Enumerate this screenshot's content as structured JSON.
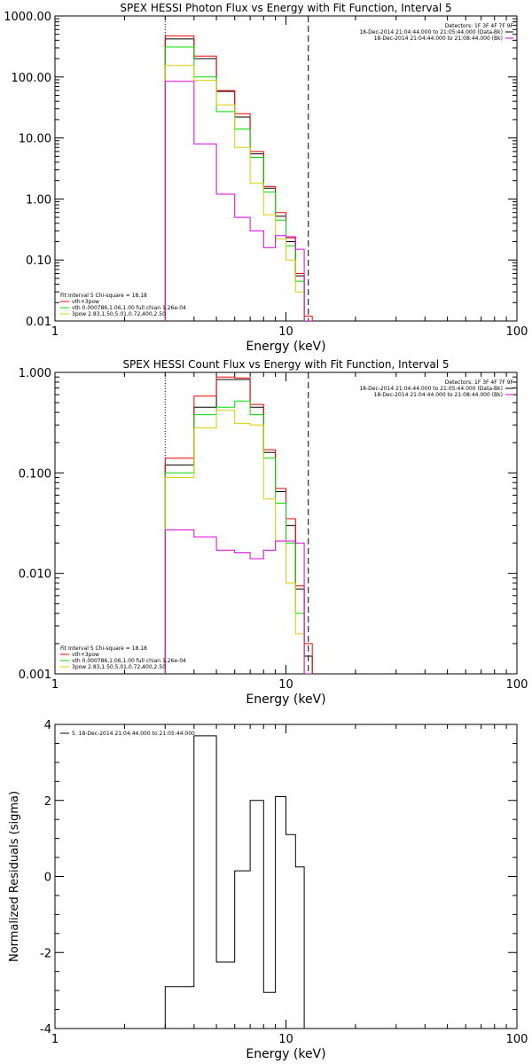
{
  "chart_data": [
    {
      "type": "line",
      "title": "SPEX HESSI Photon Flux vs Energy with Fit Function, Interval 5",
      "xlabel": "Energy (keV)",
      "ylabel": "",
      "xscale": "log",
      "yscale": "log",
      "xlim": [
        1,
        100
      ],
      "ylim": [
        0.01,
        1000
      ],
      "xticks": [
        {
          "v": 1,
          "label": "1"
        },
        {
          "v": 10,
          "label": "10"
        },
        {
          "v": 100,
          "label": "100"
        }
      ],
      "yticks": [
        {
          "v": 0.01,
          "label": "0.01"
        },
        {
          "v": 0.1,
          "label": "0.10"
        },
        {
          "v": 1,
          "label": "1.00"
        },
        {
          "v": 10,
          "label": "10.00"
        },
        {
          "v": 100,
          "label": "100.00"
        },
        {
          "v": 1000,
          "label": "1000.00"
        }
      ],
      "vlines": [
        {
          "x": 3.0,
          "style": "dotted"
        },
        {
          "x": 12.5,
          "style": "dashed"
        }
      ],
      "edges": [
        3.0,
        4.0,
        5.0,
        6.0,
        7.0,
        8.0,
        9.0,
        10.0,
        11.0,
        12.0,
        13.0
      ],
      "series": [
        {
          "color": "#000000",
          "values": [
            420,
            200,
            58,
            22,
            5.5,
            1.5,
            0.52,
            0.2,
            0.055,
            0.01
          ]
        },
        {
          "color": "#ff0000",
          "values": [
            470,
            220,
            60,
            25,
            6.0,
            1.6,
            0.6,
            0.23,
            0.06,
            0.012
          ]
        },
        {
          "color": "#00dd00",
          "values": [
            310,
            100,
            27,
            14,
            4.8,
            1.3,
            0.45,
            0.17,
            0.045,
            0.008
          ]
        },
        {
          "color": "#ddcc00",
          "values": [
            155,
            88,
            35,
            7.0,
            1.8,
            0.55,
            0.22,
            0.1,
            0.03,
            0.006
          ]
        },
        {
          "color": "#dd00dd",
          "values": [
            85,
            8.0,
            1.2,
            0.5,
            0.3,
            0.16,
            0.25,
            0.24,
            0.15,
            0.005
          ]
        }
      ],
      "legend_right": {
        "header": "Detectors: 1F 3F 4F 7F 9F",
        "entries": [
          {
            "text": "18-Dec-2014 21:04:44.000 to 21:05:44.000 (Data-Bk)",
            "color": "#000000"
          },
          {
            "text": "18-Dec-2014 21:04:44.000 to 21:08:44.000 (Bk)",
            "color": "#dd00dd"
          }
        ]
      },
      "legend_left": {
        "header": "Fit Interval 5   Chi-square = 18.18",
        "entries": [
          {
            "text": "vth+3pow",
            "color": "#ff0000"
          },
          {
            "text": "vth 0.000786,1.06,1.00  full chian 1.26e-04",
            "color": "#00dd00"
          },
          {
            "text": "3pow 2.83,1.50,5.01,0.72,400,2.50",
            "color": "#ddcc00"
          }
        ]
      }
    },
    {
      "type": "line",
      "title": "SPEX HESSI Count Flux vs Energy with Fit Function, Interval 5",
      "xlabel": "Energy (keV)",
      "ylabel": "",
      "xscale": "log",
      "yscale": "log",
      "xlim": [
        1,
        100
      ],
      "ylim": [
        0.001,
        1
      ],
      "xticks": [
        {
          "v": 1,
          "label": "1"
        },
        {
          "v": 10,
          "label": "10"
        },
        {
          "v": 100,
          "label": "100"
        }
      ],
      "yticks": [
        {
          "v": 0.001,
          "label": "0.001"
        },
        {
          "v": 0.01,
          "label": "0.010"
        },
        {
          "v": 0.1,
          "label": "0.100"
        },
        {
          "v": 1,
          "label": "1.000"
        }
      ],
      "vlines": [
        {
          "x": 3.0,
          "style": "dotted"
        },
        {
          "x": 12.5,
          "style": "dashed"
        }
      ],
      "edges": [
        3.0,
        4.0,
        5.0,
        6.0,
        7.0,
        8.0,
        9.0,
        10.0,
        11.0,
        12.0,
        13.0
      ],
      "series": [
        {
          "color": "#000000",
          "values": [
            0.12,
            0.45,
            0.85,
            0.85,
            0.45,
            0.16,
            0.065,
            0.03,
            0.007,
            0.0015
          ]
        },
        {
          "color": "#ff0000",
          "values": [
            0.14,
            0.58,
            0.9,
            0.88,
            0.48,
            0.17,
            0.07,
            0.035,
            0.0075,
            0.002
          ]
        },
        {
          "color": "#00dd00",
          "values": [
            0.1,
            0.38,
            0.45,
            0.52,
            0.38,
            0.14,
            0.05,
            0.02,
            0.004,
            0.001
          ]
        },
        {
          "color": "#ddcc00",
          "values": [
            0.09,
            0.28,
            0.42,
            0.31,
            0.3,
            0.055,
            0.021,
            0.008,
            0.0025,
            0.001
          ]
        },
        {
          "color": "#dd00dd",
          "values": [
            0.027,
            0.023,
            0.017,
            0.016,
            0.014,
            0.017,
            0.021,
            0.021,
            0.02,
            0.001
          ]
        }
      ],
      "legend_right": {
        "header": "Detectors: 1F 3F 4F 7F 9F",
        "entries": [
          {
            "text": "18-Dec-2014 21:04:44.000 to 21:05:44.000 (Data-Bk)",
            "color": "#000000"
          },
          {
            "text": "18-Dec-2014 21:04:44.000 to 21:08:44.000 (Bk)",
            "color": "#dd00dd"
          }
        ]
      },
      "legend_left": {
        "header": "Fit Interval 5   Chi-square = 18.18",
        "entries": [
          {
            "text": "vth+3pow",
            "color": "#ff0000"
          },
          {
            "text": "vth 0.000786,1.06,1.00  full chian 1.26e-04",
            "color": "#00dd00"
          },
          {
            "text": "3pow 2.83,1.50,5.01,0.72,400,2.50",
            "color": "#ddcc00"
          }
        ]
      }
    },
    {
      "type": "line",
      "title": "",
      "xlabel": "Energy (keV)",
      "ylabel": "Normalized Residuals (sigma)",
      "xscale": "log",
      "yscale": "linear",
      "xlim": [
        1,
        100
      ],
      "ylim": [
        -4,
        4
      ],
      "xticks": [
        {
          "v": 1,
          "label": "1"
        },
        {
          "v": 10,
          "label": "10"
        },
        {
          "v": 100,
          "label": "100"
        }
      ],
      "yticks": [
        {
          "v": -4,
          "label": "-4"
        },
        {
          "v": -2,
          "label": "-2"
        },
        {
          "v": 0,
          "label": "0"
        },
        {
          "v": 2,
          "label": "2"
        },
        {
          "v": 4,
          "label": "4"
        }
      ],
      "vlines": [],
      "edges": [
        3.0,
        4.0,
        5.0,
        6.0,
        7.0,
        8.0,
        9.0,
        10.0,
        11.0,
        12.0
      ],
      "series": [
        {
          "color": "#000000",
          "values": [
            -2.9,
            3.7,
            -2.25,
            0.15,
            2.0,
            -3.05,
            2.1,
            1.1,
            0.25
          ]
        }
      ],
      "legend_left": {
        "header": "",
        "entries": [
          {
            "text": "5. 18-Dec-2014 21:04:44.000 to 21:05:44.000",
            "color": "#000000"
          }
        ]
      }
    }
  ]
}
